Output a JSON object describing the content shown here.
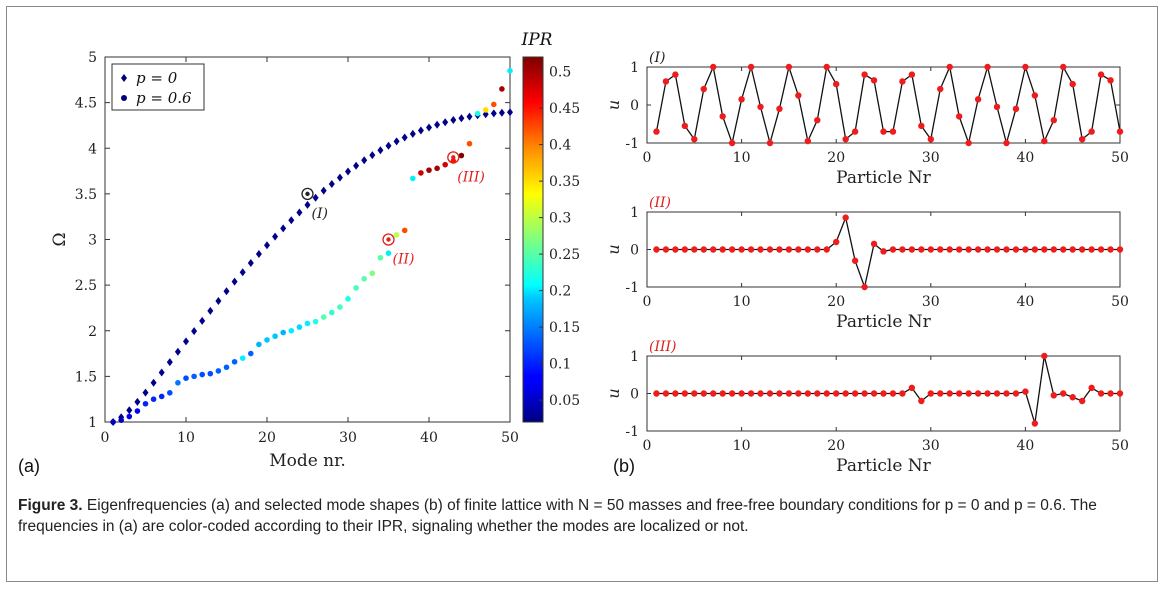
{
  "caption": {
    "label": "Figure 3.",
    "text": "Eigenfrequencies (a) and selected mode shapes (b) of finite lattice with N = 50 masses and free-free boundary conditions for p = 0 and p = 0.6. The frequencies in (a) are color-coded according to their IPR, signaling whether the modes are localized or not."
  },
  "panel_labels": {
    "a": "(a)",
    "b": "(b)"
  },
  "chart_data": [
    {
      "type": "scatter",
      "panel": "(a)",
      "xlabel": "Mode nr.",
      "ylabel": "Ω",
      "xlim": [
        0,
        50
      ],
      "ylim": [
        1,
        5
      ],
      "xticks": [
        "0",
        "10",
        "20",
        "30",
        "40",
        "50"
      ],
      "yticks": [
        "1",
        "1.5",
        "2",
        "2.5",
        "3",
        "3.5",
        "4",
        "4.5",
        "5"
      ],
      "legend": {
        "placement": "top-left",
        "entries": [
          "p = 0",
          "p = 0.6"
        ]
      },
      "colorbar": {
        "label": "IPR",
        "range": [
          0.02,
          0.52
        ],
        "ticks": [
          "0.05",
          "0.1",
          "0.15",
          "0.2",
          "0.25",
          "0.3",
          "0.35",
          "0.4",
          "0.45",
          "0.5"
        ],
        "colormap": "jet"
      },
      "series": [
        {
          "name": "p = 0",
          "marker": "diamond",
          "x": [
            1,
            2,
            3,
            4,
            5,
            6,
            7,
            8,
            9,
            10,
            11,
            12,
            13,
            14,
            15,
            16,
            17,
            18,
            19,
            20,
            21,
            22,
            23,
            24,
            25,
            26,
            27,
            28,
            29,
            30,
            31,
            32,
            33,
            34,
            35,
            36,
            37,
            38,
            39,
            40,
            41,
            42,
            43,
            44,
            45,
            46,
            47,
            48,
            49,
            50
          ],
          "y": [
            1.0,
            1.052,
            1.129,
            1.22,
            1.322,
            1.43,
            1.542,
            1.656,
            1.77,
            1.883,
            1.996,
            2.108,
            2.218,
            2.326,
            2.433,
            2.538,
            2.641,
            2.742,
            2.841,
            2.937,
            3.031,
            3.122,
            3.211,
            3.296,
            3.379,
            3.458,
            3.535,
            3.608,
            3.678,
            3.745,
            3.808,
            3.868,
            3.925,
            3.978,
            4.028,
            4.075,
            4.118,
            4.158,
            4.195,
            4.228,
            4.258,
            4.285,
            4.309,
            4.329,
            4.347,
            4.361,
            4.373,
            4.382,
            4.389,
            4.395
          ],
          "ipr": [
            0.025,
            0.025,
            0.025,
            0.025,
            0.025,
            0.025,
            0.025,
            0.025,
            0.025,
            0.025,
            0.025,
            0.025,
            0.025,
            0.025,
            0.025,
            0.025,
            0.025,
            0.025,
            0.025,
            0.025,
            0.025,
            0.025,
            0.025,
            0.025,
            0.025,
            0.025,
            0.025,
            0.025,
            0.025,
            0.025,
            0.025,
            0.025,
            0.025,
            0.025,
            0.025,
            0.025,
            0.025,
            0.025,
            0.025,
            0.025,
            0.025,
            0.025,
            0.025,
            0.025,
            0.025,
            0.025,
            0.025,
            0.025,
            0.025,
            0.025
          ]
        },
        {
          "name": "p = 0.6",
          "marker": "circle",
          "x": [
            1,
            2,
            3,
            4,
            5,
            6,
            7,
            8,
            9,
            10,
            11,
            12,
            13,
            14,
            15,
            16,
            17,
            18,
            19,
            20,
            21,
            22,
            23,
            24,
            25,
            26,
            27,
            28,
            29,
            30,
            31,
            32,
            33,
            34,
            35,
            36,
            37,
            38,
            39,
            40,
            41,
            42,
            43,
            44,
            45,
            46,
            47,
            48,
            49,
            50
          ],
          "y": [
            1.0,
            1.02,
            1.06,
            1.12,
            1.2,
            1.25,
            1.28,
            1.32,
            1.43,
            1.48,
            1.5,
            1.52,
            1.53,
            1.56,
            1.6,
            1.66,
            1.7,
            1.75,
            1.85,
            1.9,
            1.94,
            1.98,
            2.0,
            2.04,
            2.08,
            2.1,
            2.15,
            2.2,
            2.26,
            2.35,
            2.47,
            2.57,
            2.63,
            2.8,
            2.85,
            3.05,
            3.1,
            3.67,
            3.73,
            3.76,
            3.78,
            3.82,
            3.86,
            3.92,
            4.05,
            4.38,
            4.42,
            4.48,
            4.65,
            4.85
          ],
          "ipr": [
            0.05,
            0.05,
            0.08,
            0.08,
            0.1,
            0.1,
            0.1,
            0.12,
            0.14,
            0.12,
            0.13,
            0.12,
            0.12,
            0.13,
            0.13,
            0.13,
            0.2,
            0.13,
            0.17,
            0.18,
            0.18,
            0.17,
            0.2,
            0.19,
            0.2,
            0.22,
            0.25,
            0.23,
            0.24,
            0.22,
            0.24,
            0.25,
            0.27,
            0.25,
            0.2,
            0.3,
            0.42,
            0.2,
            0.48,
            0.5,
            0.5,
            0.48,
            0.45,
            0.52,
            0.42,
            0.22,
            0.35,
            0.42,
            0.5,
            0.2
          ]
        }
      ],
      "annotations": [
        {
          "text": "(I)",
          "x": 25,
          "y": 3.5,
          "color": "#222222"
        },
        {
          "text": "(II)",
          "x": 35,
          "y": 3.0,
          "color": "#e02020"
        },
        {
          "text": "(III)",
          "x": 43,
          "y": 3.9,
          "color": "#e02020"
        }
      ]
    },
    {
      "type": "line",
      "panel": "(b) (I)",
      "title": "(I)",
      "title_color": "#222222",
      "xlabel": "Particle Nr",
      "ylabel": "u",
      "xlim": [
        0,
        50
      ],
      "ylim": [
        -1,
        1
      ],
      "xticks": [
        "0",
        "10",
        "20",
        "30",
        "40",
        "50"
      ],
      "yticks": [
        "-1",
        "0",
        "1"
      ],
      "x": [
        1,
        2,
        3,
        4,
        5,
        6,
        7,
        8,
        9,
        10,
        11,
        12,
        13,
        14,
        15,
        16,
        17,
        18,
        19,
        20,
        21,
        22,
        23,
        24,
        25,
        26,
        27,
        28,
        29,
        30,
        31,
        32,
        33,
        34,
        35,
        36,
        37,
        38,
        39,
        40,
        41,
        42,
        43,
        44,
        45,
        46,
        47,
        48,
        49,
        50
      ],
      "y": [
        -0.7,
        0.62,
        0.8,
        -0.55,
        -0.9,
        0.42,
        1.0,
        -0.3,
        -1.0,
        0.15,
        1.0,
        -0.05,
        -1.0,
        -0.1,
        1.0,
        0.25,
        -0.95,
        -0.4,
        1.0,
        0.55,
        -0.9,
        -0.7,
        0.8,
        0.65,
        -0.7,
        -0.7,
        0.62,
        0.8,
        -0.55,
        -0.9,
        0.42,
        1.0,
        -0.3,
        -1.0,
        0.15,
        1.0,
        -0.05,
        -1.0,
        -0.1,
        1.0,
        0.25,
        -0.95,
        -0.4,
        1.0,
        0.55,
        -0.9,
        -0.7,
        0.8,
        0.65,
        -0.7
      ]
    },
    {
      "type": "line",
      "panel": "(b) (II)",
      "title": "(II)",
      "title_color": "#e02020",
      "xlabel": "Particle Nr",
      "ylabel": "u",
      "xlim": [
        0,
        50
      ],
      "ylim": [
        -1,
        1
      ],
      "xticks": [
        "0",
        "10",
        "20",
        "30",
        "40",
        "50"
      ],
      "yticks": [
        "-1",
        "0",
        "1"
      ],
      "x": [
        1,
        2,
        3,
        4,
        5,
        6,
        7,
        8,
        9,
        10,
        11,
        12,
        13,
        14,
        15,
        16,
        17,
        18,
        19,
        20,
        21,
        22,
        23,
        24,
        25,
        26,
        27,
        28,
        29,
        30,
        31,
        32,
        33,
        34,
        35,
        36,
        37,
        38,
        39,
        40,
        41,
        42,
        43,
        44,
        45,
        46,
        47,
        48,
        49,
        50
      ],
      "y": [
        0,
        0,
        0,
        0,
        0,
        0,
        0,
        0,
        0,
        0,
        0,
        0,
        0,
        0,
        0,
        0,
        0,
        0,
        0,
        0.2,
        0.85,
        -0.3,
        -1.0,
        0.15,
        -0.05,
        0,
        0,
        0,
        0,
        0,
        0,
        0,
        0,
        0,
        0,
        0,
        0,
        0,
        0,
        0,
        0,
        0,
        0,
        0,
        0,
        0,
        0,
        0,
        0,
        0
      ]
    },
    {
      "type": "line",
      "panel": "(b) (III)",
      "title": "(III)",
      "title_color": "#e02020",
      "xlabel": "Particle Nr",
      "ylabel": "u",
      "xlim": [
        0,
        50
      ],
      "ylim": [
        -1,
        1
      ],
      "xticks": [
        "0",
        "10",
        "20",
        "30",
        "40",
        "50"
      ],
      "yticks": [
        "-1",
        "0",
        "1"
      ],
      "x": [
        1,
        2,
        3,
        4,
        5,
        6,
        7,
        8,
        9,
        10,
        11,
        12,
        13,
        14,
        15,
        16,
        17,
        18,
        19,
        20,
        21,
        22,
        23,
        24,
        25,
        26,
        27,
        28,
        29,
        30,
        31,
        32,
        33,
        34,
        35,
        36,
        37,
        38,
        39,
        40,
        41,
        42,
        43,
        44,
        45,
        46,
        47,
        48,
        49,
        50
      ],
      "y": [
        0,
        0,
        0,
        0,
        0,
        0,
        0,
        0,
        0,
        0,
        0,
        0,
        0,
        0,
        0,
        0,
        0,
        0,
        0,
        0,
        0,
        0,
        0,
        0,
        0,
        0,
        0,
        0.15,
        -0.2,
        0,
        0,
        0,
        0,
        0,
        0,
        0,
        0,
        0,
        0,
        0.05,
        -0.8,
        1.0,
        -0.05,
        0,
        -0.1,
        -0.2,
        0.15,
        0,
        0,
        0
      ]
    }
  ]
}
